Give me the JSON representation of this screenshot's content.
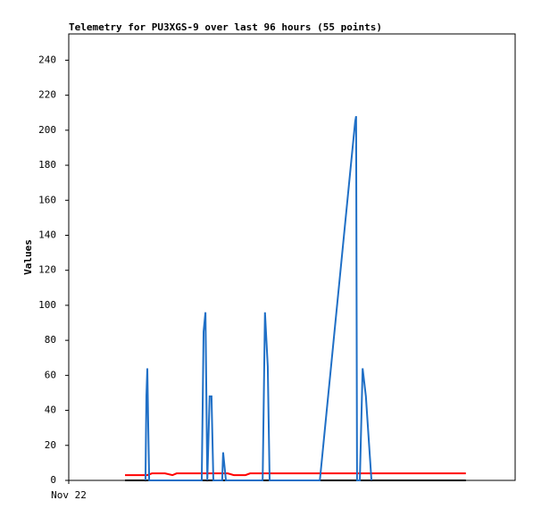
{
  "chart_data": {
    "type": "line",
    "title": "Telemetry for PU3XGS-9 over last 96 hours (55 points)",
    "y_label": "Values",
    "xlim": [
      0,
      96
    ],
    "xticks": [
      {
        "value": 0,
        "label": "Nov 22"
      }
    ],
    "ylim": [
      0,
      255
    ],
    "yticks": [
      0,
      20,
      40,
      60,
      80,
      100,
      120,
      140,
      160,
      180,
      200,
      220,
      240
    ],
    "series": [
      {
        "color": "#000000",
        "x": [
          12.1,
          85.4
        ],
        "values": [
          0,
          0
        ]
      },
      {
        "color": "#ff0000",
        "x": [
          12.1,
          16.9,
          17.9,
          20.7,
          22.3,
          23.2,
          34.2,
          35.5,
          38.0,
          39.0,
          85.4
        ],
        "values": [
          3,
          3,
          4,
          4,
          3,
          4,
          4,
          3,
          3,
          4,
          4
        ]
      },
      {
        "color": "#1f6fc6",
        "x": [
          16.5,
          16.7,
          16.9,
          17.1,
          17.3,
          28.6,
          29.0,
          29.4,
          29.8,
          30.3,
          30.7,
          31.1,
          33.0,
          33.2,
          33.8,
          41.7,
          42.2,
          42.8,
          43.2,
          54.0,
          61.6,
          61.8,
          62.0,
          62.6,
          63.2,
          63.9,
          65.1
        ],
        "values": [
          0,
          48,
          64,
          30,
          0,
          0,
          85,
          96,
          0,
          48,
          48,
          0,
          0,
          16,
          0,
          0,
          96,
          65,
          0,
          0,
          205,
          208,
          0,
          0,
          64,
          48,
          0
        ]
      }
    ]
  }
}
